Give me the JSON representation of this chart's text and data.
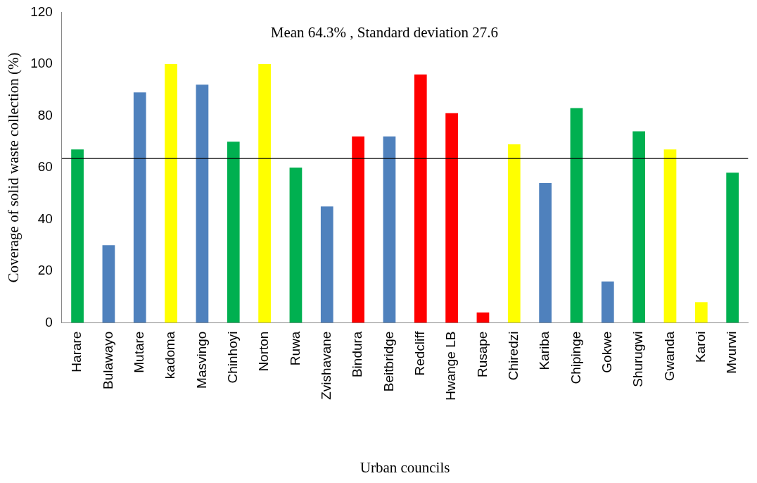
{
  "chart_data": {
    "type": "bar",
    "xlabel": "Urban councils",
    "ylabel": "Coverage of solid waste collection (%)",
    "annotations": [
      "Mean 64.3% , Standard deviation 27.6"
    ],
    "categories": [
      "Harare",
      "Bulawayo",
      "Mutare",
      "kadoma",
      "Masvingo",
      "Chinhoyi",
      "Norton",
      "Ruwa",
      "Zvishavane",
      "Bindura",
      "Beitbridge",
      "Redcliff",
      "Hwange LB",
      "Rusape",
      "Chiredzi",
      "Kariba",
      "Chipinge",
      "Gokwe",
      "Shurugwi",
      "Gwanda",
      "Karoi",
      "Mvurwi"
    ],
    "values": [
      67,
      30,
      89,
      100,
      92,
      70,
      100,
      60,
      45,
      72,
      72,
      96,
      81,
      4,
      69,
      54,
      83,
      16,
      74,
      67,
      8,
      58
    ],
    "colors": [
      "#00b050",
      "#4f81bd",
      "#4f81bd",
      "#ffff00",
      "#4f81bd",
      "#00b050",
      "#ffff00",
      "#00b050",
      "#4f81bd",
      "#ff0000",
      "#4f81bd",
      "#ff0000",
      "#ff0000",
      "#ff0000",
      "#ffff00",
      "#4f81bd",
      "#00b050",
      "#4f81bd",
      "#00b050",
      "#ffff00",
      "#ffff00",
      "#00b050"
    ],
    "ylim": [
      0,
      120
    ],
    "yticks": [
      0,
      20,
      40,
      60,
      80,
      100,
      120
    ],
    "ref_lines": [
      {
        "axis": "y",
        "value": 63.5,
        "color": "#000000"
      }
    ],
    "grid": false,
    "legend": false
  }
}
